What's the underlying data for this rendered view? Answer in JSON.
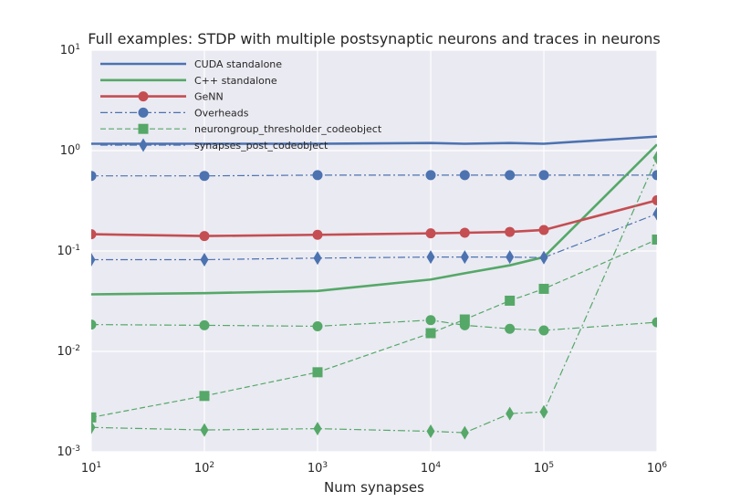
{
  "chart_data": {
    "type": "line",
    "title": "Full examples: STDP with multiple postsynaptic neurons and traces in neurons",
    "xlabel": "Num synapses",
    "ylabel": "",
    "xscale": "log",
    "yscale": "log",
    "xlim": [
      10,
      1000000
    ],
    "ylim": [
      0.001,
      10
    ],
    "grid": true,
    "legend_position": "top-left",
    "x_ticks": [
      {
        "base": "10",
        "exp": "1",
        "value": 10
      },
      {
        "base": "10",
        "exp": "2",
        "value": 100
      },
      {
        "base": "10",
        "exp": "3",
        "value": 1000
      },
      {
        "base": "10",
        "exp": "4",
        "value": 10000
      },
      {
        "base": "10",
        "exp": "5",
        "value": 100000
      },
      {
        "base": "10",
        "exp": "6",
        "value": 1000000
      }
    ],
    "y_ticks": [
      {
        "base": "10",
        "exp": "-3",
        "value": 0.001
      },
      {
        "base": "10",
        "exp": "-2",
        "value": 0.01
      },
      {
        "base": "10",
        "exp": "-1",
        "value": 0.1
      },
      {
        "base": "10",
        "exp": "0",
        "value": 1
      },
      {
        "base": "10",
        "exp": "1",
        "value": 10
      }
    ],
    "series": [
      {
        "name": "CUDA standalone",
        "color": "#4c72b0",
        "style": "solid",
        "marker": "none",
        "in_legend": true,
        "x": [
          10,
          100,
          1000,
          10000,
          20000,
          50000,
          100000,
          1000000
        ],
        "y": [
          1.17,
          1.17,
          1.17,
          1.19,
          1.17,
          1.19,
          1.17,
          1.38
        ]
      },
      {
        "name": "C++ standalone",
        "color": "#55a868",
        "style": "solid",
        "marker": "none",
        "in_legend": true,
        "x": [
          10,
          100,
          1000,
          10000,
          20000,
          50000,
          100000,
          1000000
        ],
        "y": [
          0.037,
          0.038,
          0.04,
          0.052,
          0.06,
          0.072,
          0.087,
          1.15
        ]
      },
      {
        "name": "GeNN",
        "color": "#c44e52",
        "style": "solid",
        "marker": "circle",
        "in_legend": true,
        "x": [
          10,
          100,
          1000,
          10000,
          20000,
          50000,
          100000,
          1000000
        ],
        "y": [
          0.147,
          0.141,
          0.145,
          0.15,
          0.152,
          0.155,
          0.162,
          0.32
        ]
      },
      {
        "name": "Overheads",
        "color": "#4c72b0",
        "style": "dashdot",
        "marker": "circle",
        "in_legend": true,
        "x": [
          10,
          100,
          1000,
          10000,
          20000,
          50000,
          100000,
          1000000
        ],
        "y": [
          0.56,
          0.56,
          0.57,
          0.57,
          0.57,
          0.57,
          0.57,
          0.57
        ]
      },
      {
        "name": "neurongroup_thresholder_codeobject",
        "color": "#55a868",
        "style": "dashed",
        "marker": "square",
        "in_legend": true,
        "x": [
          10,
          100,
          1000,
          10000,
          20000,
          50000,
          100000,
          1000000
        ],
        "y": [
          0.0022,
          0.0036,
          0.0062,
          0.0152,
          0.0208,
          0.032,
          0.042,
          0.13
        ]
      },
      {
        "name": "synapses_post_codeobject",
        "color": "#4c72b0",
        "style": "dashdot",
        "marker": "diamond",
        "in_legend": true,
        "x": [
          10,
          100,
          1000,
          10000,
          20000,
          50000,
          100000,
          1000000
        ],
        "y": [
          0.082,
          0.082,
          0.085,
          0.087,
          0.087,
          0.087,
          0.086,
          0.235
        ]
      },
      {
        "name": "",
        "color": "#55a868",
        "style": "dashdot",
        "marker": "circle",
        "in_legend": false,
        "x": [
          10,
          100,
          1000,
          10000,
          20000,
          50000,
          100000,
          1000000
        ],
        "y": [
          0.0185,
          0.0182,
          0.0178,
          0.0205,
          0.0182,
          0.0168,
          0.0162,
          0.0195
        ]
      },
      {
        "name": "",
        "color": "#55a868",
        "style": "dashdot",
        "marker": "diamond",
        "in_legend": false,
        "x": [
          10,
          100,
          1000,
          10000,
          20000,
          50000,
          100000,
          1000000
        ],
        "y": [
          0.00175,
          0.00165,
          0.0017,
          0.0016,
          0.00155,
          0.0024,
          0.0025,
          0.85
        ]
      }
    ]
  }
}
